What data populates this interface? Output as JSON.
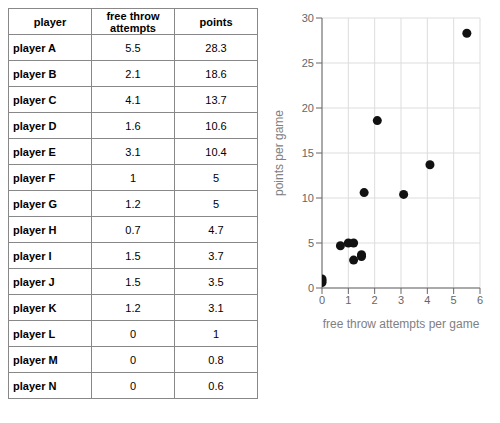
{
  "chart_data": [
    {
      "type": "table",
      "columns": [
        "player",
        "free throw attempts",
        "points"
      ],
      "rows": [
        [
          "player A",
          5.5,
          28.3
        ],
        [
          "player B",
          2.1,
          18.6
        ],
        [
          "player C",
          4.1,
          13.7
        ],
        [
          "player D",
          1.6,
          10.6
        ],
        [
          "player E",
          3.1,
          10.4
        ],
        [
          "player F",
          1,
          5
        ],
        [
          "player G",
          1.2,
          5
        ],
        [
          "player H",
          0.7,
          4.7
        ],
        [
          "player I",
          1.5,
          3.7
        ],
        [
          "player J",
          1.5,
          3.5
        ],
        [
          "player K",
          1.2,
          3.1
        ],
        [
          "player L",
          0,
          1
        ],
        [
          "player M",
          0,
          0.8
        ],
        [
          "player N",
          0,
          0.6
        ]
      ]
    },
    {
      "type": "scatter",
      "x": [
        5.5,
        2.1,
        4.1,
        1.6,
        3.1,
        1.0,
        1.2,
        0.7,
        1.5,
        1.5,
        1.2,
        0.0,
        0.0,
        0.0
      ],
      "values": [
        28.3,
        18.6,
        13.7,
        10.6,
        10.4,
        5.0,
        5.0,
        4.7,
        3.7,
        3.5,
        3.1,
        1.0,
        0.8,
        0.6
      ],
      "xlabel": "free throw attempts per game",
      "ylabel": "points per game",
      "xlim": [
        0,
        6
      ],
      "ylim": [
        0,
        30
      ],
      "xticks": [
        0,
        1,
        2,
        3,
        4,
        5,
        6
      ],
      "yticks": [
        0,
        5,
        10,
        15,
        20,
        25,
        30
      ],
      "grid": true,
      "color": "#111111"
    }
  ]
}
